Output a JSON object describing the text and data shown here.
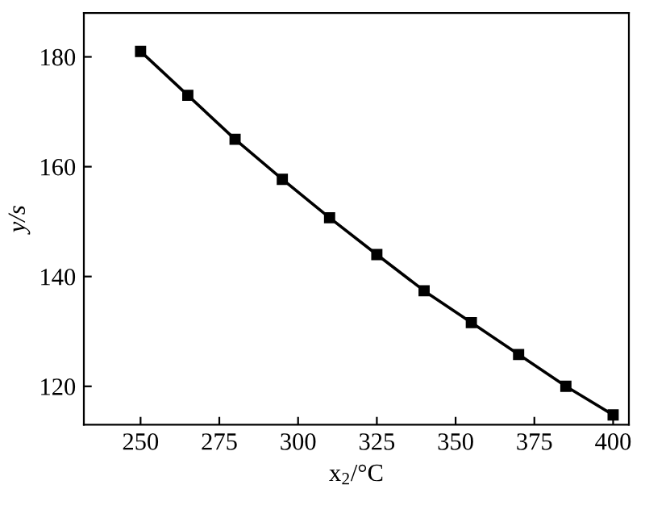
{
  "chart_data": {
    "type": "line",
    "xlabel": "x$_{2}$/°C",
    "ylabel": "y/s",
    "x": [
      250,
      265,
      280,
      295,
      310,
      325,
      340,
      355,
      370,
      385,
      400
    ],
    "series": [
      {
        "color": "#000000",
        "values": [
          181,
          173,
          165,
          157.7,
          150.7,
          144,
          137.4,
          131.6,
          125.8,
          120,
          114.8
        ]
      }
    ],
    "xlim": [
      232,
      405
    ],
    "ylim": [
      113,
      188
    ],
    "xticks": [
      250,
      275,
      300,
      325,
      350,
      375,
      400
    ],
    "yticks": [
      120,
      140,
      160,
      180
    ],
    "marker": "square",
    "line_style": "solid",
    "grid": false,
    "legend": false
  }
}
